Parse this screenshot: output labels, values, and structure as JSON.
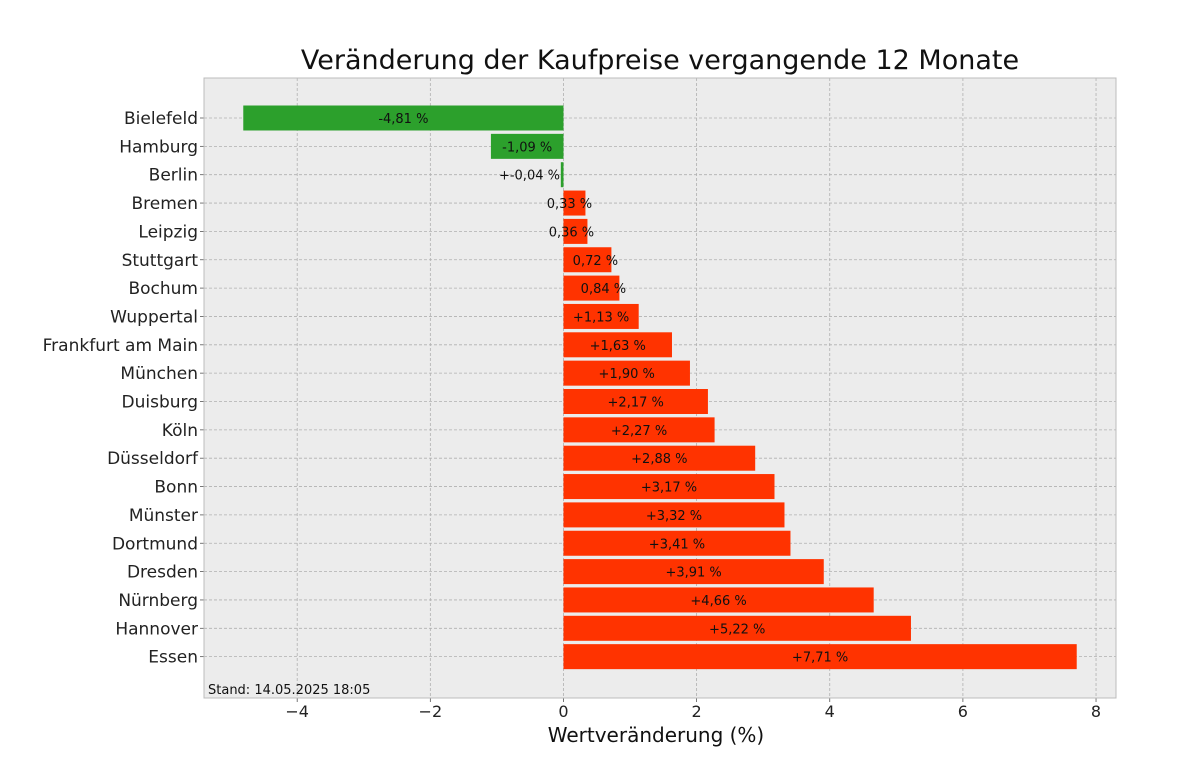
{
  "chart_data": {
    "type": "bar",
    "orientation": "horizontal",
    "title": "Veränderung der Kaufpreise vergangende 12 Monate",
    "xlabel": "Wertveränderung (%)",
    "ylabel": "",
    "xlim": [
      -5.4,
      8.3
    ],
    "xticks": [
      -4,
      -2,
      0,
      2,
      4,
      6,
      8
    ],
    "xtick_labels": [
      "−4",
      "−2",
      "0",
      "2",
      "4",
      "6",
      "8"
    ],
    "grid": true,
    "legend": "none",
    "categories": [
      "Bielefeld",
      "Hamburg",
      "Berlin",
      "Bremen",
      "Leipzig",
      "Stuttgart",
      "Bochum",
      "Wuppertal",
      "Frankfurt am Main",
      "München",
      "Duisburg",
      "Köln",
      "Düsseldorf",
      "Bonn",
      "Münster",
      "Dortmund",
      "Dresden",
      "Nürnberg",
      "Hannover",
      "Essen"
    ],
    "values": [
      -4.81,
      -1.09,
      -0.04,
      0.33,
      0.36,
      0.72,
      0.84,
      1.13,
      1.63,
      1.9,
      2.17,
      2.27,
      2.88,
      3.17,
      3.32,
      3.41,
      3.91,
      4.66,
      5.22,
      7.71
    ],
    "value_labels": [
      "-4,81 %",
      "-1,09 %",
      "+-0,04 %",
      "0,33 %",
      "0,36 %",
      "0,72 %",
      "0,84 %",
      "+1,13 %",
      "+1,63 %",
      "+1,90 %",
      "+2,17 %",
      "+2,27 %",
      "+2,88 %",
      "+3,17 %",
      "+3,32 %",
      "+3,41 %",
      "+3,91 %",
      "+4,66 %",
      "+5,22 %",
      "+7,71 %"
    ],
    "colors": {
      "negative": "#2ca02c",
      "positive": "#ff3300",
      "plot_background": "#ececec",
      "grid": "#b0b0b0",
      "axes_edge": "#bcbcbc"
    },
    "footnote": "Stand: 14.05.2025 18:05"
  }
}
